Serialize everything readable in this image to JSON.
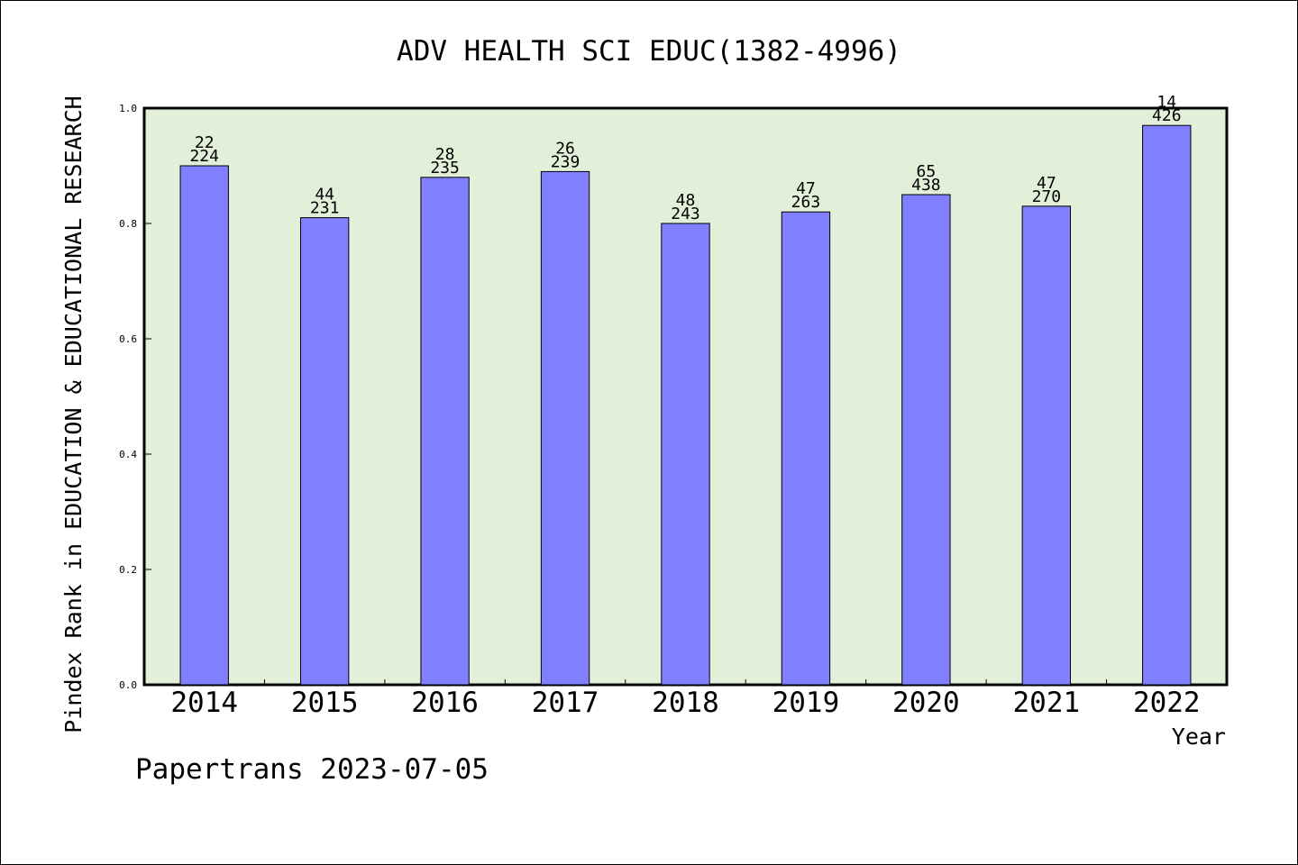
{
  "chart_data": {
    "type": "bar",
    "title": "ADV HEALTH SCI EDUC(1382-4996)",
    "xlabel": "Year",
    "ylabel": "Pindex Rank in EDUCATION & EDUCATIONAL RESEARCH",
    "categories": [
      "2014",
      "2015",
      "2016",
      "2017",
      "2018",
      "2019",
      "2020",
      "2021",
      "2022"
    ],
    "values": [
      0.9,
      0.81,
      0.88,
      0.89,
      0.8,
      0.82,
      0.85,
      0.83,
      0.97
    ],
    "label_rank": [
      "22",
      "44",
      "28",
      "26",
      "48",
      "47",
      "65",
      "47",
      "14"
    ],
    "label_total": [
      "224",
      "231",
      "235",
      "239",
      "243",
      "263",
      "438",
      "270",
      "426"
    ],
    "ylim": [
      0,
      1.0
    ],
    "yticks": [
      "0.0",
      "0.2",
      "0.4",
      "0.6",
      "0.8",
      "1.0"
    ],
    "grid": false,
    "colors": {
      "bar": "#8080ff",
      "plot_background": "#e2f0d9"
    }
  },
  "footer": {
    "credit": "Papertrans 2023-07-05"
  }
}
